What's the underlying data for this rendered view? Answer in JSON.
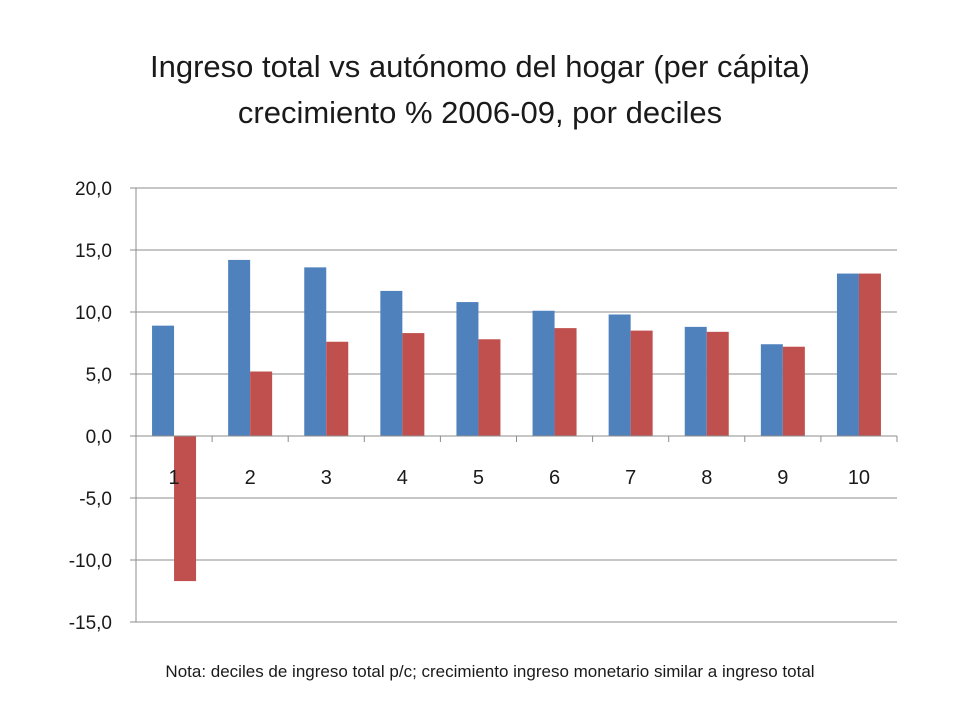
{
  "title_line1": "Ingreso total vs autónomo del hogar (per cápita)",
  "title_line2": "crecimiento % 2006-09, por deciles",
  "note": "Nota: deciles de ingreso total p/c; crecimiento ingreso monetario similar a ingreso total",
  "colors": {
    "series1": "#4f81bd",
    "series2": "#c0504d"
  },
  "chart_data": {
    "type": "bar",
    "categories": [
      "1",
      "2",
      "3",
      "4",
      "5",
      "6",
      "7",
      "8",
      "9",
      "10"
    ],
    "series": [
      {
        "values": [
          8.9,
          14.2,
          13.6,
          11.7,
          10.8,
          10.1,
          9.8,
          8.8,
          7.4,
          13.1
        ]
      },
      {
        "values": [
          -11.7,
          5.2,
          7.6,
          8.3,
          7.8,
          8.7,
          8.5,
          8.4,
          7.2,
          13.1
        ]
      }
    ],
    "ylim": [
      -15,
      20
    ],
    "yticks": [
      20,
      15,
      10,
      5,
      0,
      -5,
      -10,
      -15
    ],
    "ytick_labels": [
      "20,0",
      "15,0",
      "10,0",
      "5,0",
      "0,0",
      "-5,0",
      "-10,0",
      "-15,0"
    ],
    "grid": true,
    "legend": "none"
  }
}
